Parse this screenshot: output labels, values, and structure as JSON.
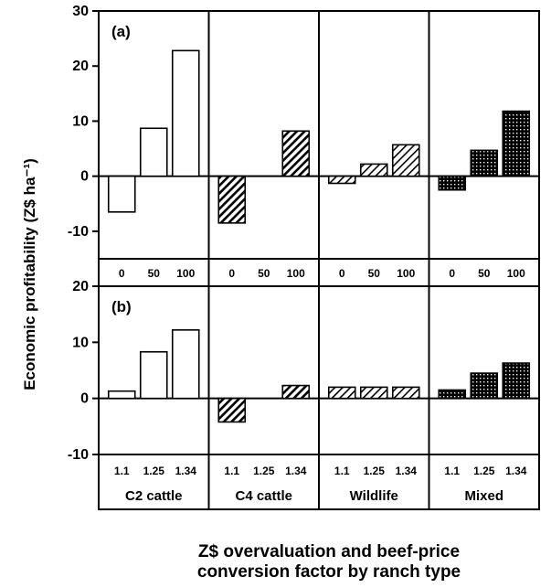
{
  "chart_data": {
    "type": "bar",
    "ylabel": "Economic profitability (Z$ ha⁻¹)",
    "xlabel_line1": "Z$ overvaluation and beef-price",
    "xlabel_line2": "conversion factor by ranch type",
    "groups": [
      "C2  cattle",
      "C4 cattle",
      "Wildlife",
      "Mixed"
    ],
    "series_fill": [
      "white",
      "hatch",
      "hatch-light",
      "dots"
    ],
    "panels": [
      {
        "label": "(a)",
        "categories": [
          "0",
          "50",
          "100"
        ],
        "ylim": [
          -15,
          30
        ],
        "yticks": [
          -10,
          0,
          10,
          20,
          30
        ],
        "values": [
          [
            -6.5,
            8.7,
            22.8
          ],
          [
            -8.5,
            0,
            8.2
          ],
          [
            -1.3,
            2.2,
            5.7
          ],
          [
            -2.5,
            4.7,
            11.8
          ]
        ]
      },
      {
        "label": "(b)",
        "categories": [
          "1.1",
          "1.25",
          "1.34"
        ],
        "ylim": [
          -10,
          20
        ],
        "yticks": [
          -10,
          0,
          10,
          20
        ],
        "values": [
          [
            1.3,
            8.3,
            12.2
          ],
          [
            -4.2,
            0,
            2.3
          ],
          [
            2.0,
            2.0,
            2.0
          ],
          [
            1.5,
            4.5,
            6.3
          ]
        ]
      }
    ]
  }
}
